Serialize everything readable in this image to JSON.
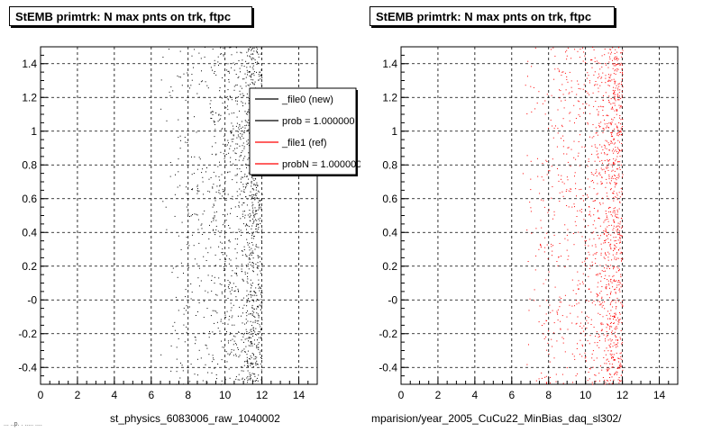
{
  "panels": [
    {
      "title": "StEMB primtrk: N max pnts on trk, ftpc",
      "caption": "st_physics_6083006_raw_1040002",
      "legend": [
        {
          "label": "_file0 (new)",
          "color": "#000000"
        },
        {
          "label": "prob = 1.000000",
          "color": "#000000"
        },
        {
          "label": "_file1 (ref)",
          "color": "#ff0000"
        },
        {
          "label": "probN = 1.000000",
          "color": "#ff0000"
        }
      ]
    },
    {
      "title": "StEMB primtrk: N max pnts on trk, ftpc",
      "caption": "mparision/year_2005_CuCu22_MinBias_daq_sl302/"
    }
  ],
  "footer_text": "... ..p. . ..... ....",
  "chart_data": [
    {
      "type": "scatter",
      "title": "StEMB primtrk: N max pnts on trk, ftpc",
      "xlim": [
        0,
        15
      ],
      "ylim": [
        -0.5,
        1.5
      ],
      "xticks": [
        0,
        2,
        4,
        6,
        8,
        10,
        12,
        14
      ],
      "yticks": [
        "-0.4",
        "-0.2",
        "-0",
        "0.2",
        "0.4",
        "0.6",
        "0.8",
        "1",
        "1.2",
        "1.4"
      ],
      "ytick_values": [
        -0.4,
        -0.2,
        0,
        0.2,
        0.4,
        0.6,
        0.8,
        1.0,
        1.2,
        1.4
      ],
      "grid": true,
      "marker_color": "#000000",
      "series": [
        {
          "x": 6.5,
          "y": [
            -0.5,
            1.5
          ],
          "density": 0.02
        },
        {
          "x": 7,
          "y": [
            -0.5,
            1.5
          ],
          "density": 0.05
        },
        {
          "x": 8,
          "y": [
            -0.5,
            1.5
          ],
          "density": 0.1
        },
        {
          "x": 9,
          "y": [
            -0.5,
            1.5
          ],
          "density": 0.14
        },
        {
          "x": 10,
          "y": [
            -0.5,
            1.5
          ],
          "density": 0.2
        },
        {
          "x": 11,
          "y": [
            -0.5,
            1.5
          ],
          "density": 0.45
        },
        {
          "x": 11.5,
          "y": [
            -0.5,
            1.5
          ],
          "density": 1.0
        },
        {
          "x": 12,
          "y": [
            -0.5,
            1.5
          ],
          "density": 0.6
        }
      ]
    },
    {
      "type": "scatter",
      "title": "StEMB primtrk: N max pnts on trk, ftpc",
      "xlim": [
        0,
        15
      ],
      "ylim": [
        -0.5,
        1.5
      ],
      "xticks": [
        0,
        2,
        4,
        6,
        8,
        10,
        12,
        14
      ],
      "yticks": [
        "-0.4",
        "-0.2",
        "-0",
        "0.2",
        "0.4",
        "0.6",
        "0.8",
        "1",
        "1.2",
        "1.4"
      ],
      "ytick_values": [
        -0.4,
        -0.2,
        0,
        0.2,
        0.4,
        0.6,
        0.8,
        1.0,
        1.2,
        1.4
      ],
      "grid": true,
      "marker_color": "#ff0000",
      "series": [
        {
          "x": 6.5,
          "y": [
            -0.5,
            1.5
          ],
          "density": 0.02
        },
        {
          "x": 7,
          "y": [
            -0.5,
            1.5
          ],
          "density": 0.05
        },
        {
          "x": 8,
          "y": [
            -0.5,
            1.5
          ],
          "density": 0.1
        },
        {
          "x": 9,
          "y": [
            -0.5,
            1.5
          ],
          "density": 0.14
        },
        {
          "x": 10,
          "y": [
            -0.5,
            1.5
          ],
          "density": 0.2
        },
        {
          "x": 11,
          "y": [
            -0.5,
            1.5
          ],
          "density": 0.45
        },
        {
          "x": 11.5,
          "y": [
            -0.5,
            1.5
          ],
          "density": 1.0
        },
        {
          "x": 12,
          "y": [
            -0.5,
            1.5
          ],
          "density": 0.6
        }
      ]
    }
  ]
}
